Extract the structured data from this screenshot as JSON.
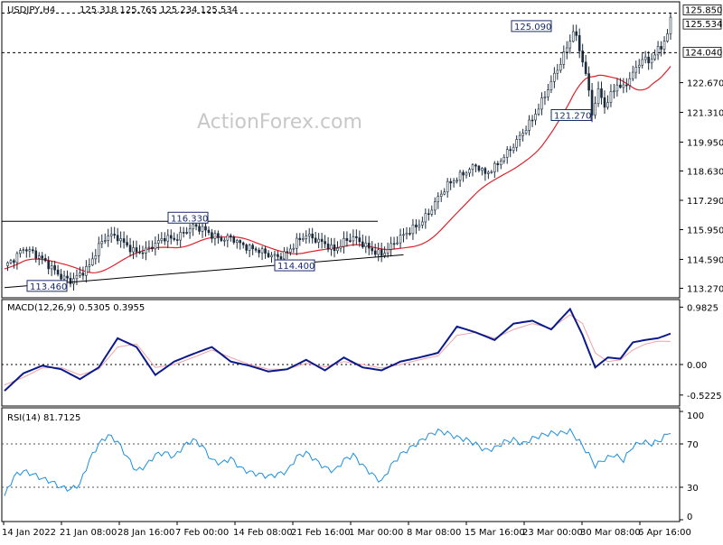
{
  "header": {
    "symbol": "USDJPY,H4",
    "ohlc": "125.318 125.765 125.234 125.534"
  },
  "watermark": "ActionForex.com",
  "colors": {
    "candle": "#1a2b3c",
    "ma": "#e0202a",
    "macd": "#0b1a8a",
    "macd_signal": "#f2a0a8",
    "rsi": "#1a8fe0",
    "axis": "#000000",
    "price_tag_bg": "#ffffff"
  },
  "chart_data": [
    {
      "type": "candlestick",
      "title": "USDJPY,H4",
      "ylim": [
        113.0,
        126.2
      ],
      "y_ticks": [
        "113.270",
        "114.590",
        "115.950",
        "117.290",
        "118.630",
        "119.950",
        "121.310",
        "122.670",
        "124.040",
        "125.534",
        "125.850"
      ],
      "x_ticks": [
        "14 Jan 2022",
        "21 Jan 08:00",
        "28 Jan 16:00",
        "7 Feb 00:00",
        "14 Feb 08:00",
        "21 Feb 16:00",
        "1 Mar 00:00",
        "8 Mar 08:00",
        "15 Mar 16:00",
        "23 Mar 00:00",
        "30 Mar 08:00",
        "6 Apr 16:00"
      ],
      "close_path": [
        [
          0,
          114.3
        ],
        [
          3,
          114.6
        ],
        [
          6,
          115.1
        ],
        [
          9,
          114.9
        ],
        [
          12,
          114.6
        ],
        [
          15,
          114.2
        ],
        [
          18,
          113.8
        ],
        [
          21,
          113.6
        ],
        [
          24,
          113.9
        ],
        [
          27,
          114.3
        ],
        [
          30,
          115.2
        ],
        [
          33,
          115.7
        ],
        [
          36,
          115.6
        ],
        [
          39,
          115.2
        ],
        [
          42,
          114.9
        ],
        [
          45,
          115.0
        ],
        [
          48,
          115.3
        ],
        [
          51,
          115.6
        ],
        [
          54,
          115.5
        ],
        [
          57,
          115.8
        ],
        [
          60,
          116.1
        ],
        [
          63,
          116.0
        ],
        [
          66,
          115.7
        ],
        [
          69,
          115.5
        ],
        [
          72,
          115.6
        ],
        [
          75,
          115.3
        ],
        [
          78,
          115.1
        ],
        [
          81,
          115.0
        ],
        [
          84,
          114.8
        ],
        [
          87,
          114.7
        ],
        [
          90,
          114.9
        ],
        [
          93,
          115.4
        ],
        [
          96,
          115.7
        ],
        [
          99,
          115.5
        ],
        [
          102,
          115.3
        ],
        [
          105,
          115.0
        ],
        [
          108,
          115.4
        ],
        [
          111,
          115.6
        ],
        [
          114,
          115.3
        ],
        [
          117,
          115.0
        ],
        [
          120,
          114.8
        ],
        [
          123,
          115.2
        ],
        [
          126,
          115.6
        ],
        [
          129,
          115.9
        ],
        [
          132,
          116.2
        ],
        [
          135,
          116.7
        ],
        [
          138,
          117.4
        ],
        [
          141,
          118.0
        ],
        [
          144,
          118.3
        ],
        [
          147,
          118.6
        ],
        [
          150,
          118.9
        ],
        [
          153,
          118.5
        ],
        [
          156,
          118.8
        ],
        [
          159,
          119.3
        ],
        [
          162,
          119.8
        ],
        [
          165,
          120.4
        ],
        [
          168,
          121.0
        ],
        [
          171,
          121.8
        ],
        [
          174,
          122.7
        ],
        [
          177,
          123.6
        ],
        [
          180,
          124.6
        ],
        [
          181,
          125.09
        ],
        [
          183,
          124.2
        ],
        [
          185,
          123.1
        ],
        [
          187,
          121.27
        ],
        [
          189,
          122.3
        ],
        [
          191,
          121.6
        ],
        [
          193,
          122.1
        ],
        [
          195,
          122.6
        ],
        [
          197,
          122.4
        ],
        [
          199,
          122.9
        ],
        [
          201,
          123.3
        ],
        [
          203,
          123.8
        ],
        [
          205,
          123.6
        ],
        [
          207,
          124.0
        ],
        [
          209,
          124.3
        ],
        [
          211,
          124.9
        ],
        [
          212,
          125.534
        ]
      ],
      "labels": [
        {
          "text": "125.090",
          "value": 125.09
        },
        {
          "text": "121.270",
          "value": 121.27
        },
        {
          "text": "116.330",
          "value": 116.33
        },
        {
          "text": "114.400",
          "value": 114.4
        },
        {
          "text": "113.460",
          "value": 113.46
        }
      ],
      "hlines": [
        {
          "value": 125.85,
          "style": "dashed"
        },
        {
          "value": 124.04,
          "style": "dashed"
        },
        {
          "value": 116.33,
          "style": "solid"
        }
      ],
      "trendline": [
        [
          113.46,
          "start"
        ],
        [
          114.8,
          "end"
        ]
      ],
      "price_tags": [
        "125.850",
        "125.534",
        "124.040"
      ]
    },
    {
      "type": "line",
      "title": "MACD(12,26,9) 0.5305 0.3955",
      "ylim": [
        -0.68,
        1.05
      ],
      "y_ticks": [
        "0.9825",
        "0.00",
        "-0.5225"
      ],
      "macd": [
        [
          0,
          -0.45
        ],
        [
          6,
          -0.15
        ],
        [
          12,
          -0.02
        ],
        [
          18,
          -0.08
        ],
        [
          24,
          -0.25
        ],
        [
          30,
          -0.05
        ],
        [
          36,
          0.45
        ],
        [
          42,
          0.3
        ],
        [
          48,
          -0.18
        ],
        [
          54,
          0.05
        ],
        [
          60,
          0.18
        ],
        [
          66,
          0.3
        ],
        [
          72,
          0.05
        ],
        [
          78,
          -0.02
        ],
        [
          84,
          -0.12
        ],
        [
          90,
          -0.08
        ],
        [
          96,
          0.08
        ],
        [
          102,
          -0.1
        ],
        [
          108,
          0.12
        ],
        [
          114,
          -0.05
        ],
        [
          120,
          -0.1
        ],
        [
          126,
          0.05
        ],
        [
          132,
          0.12
        ],
        [
          138,
          0.2
        ],
        [
          144,
          0.65
        ],
        [
          150,
          0.55
        ],
        [
          156,
          0.42
        ],
        [
          162,
          0.7
        ],
        [
          168,
          0.75
        ],
        [
          174,
          0.6
        ],
        [
          180,
          0.95
        ],
        [
          184,
          0.5
        ],
        [
          188,
          -0.05
        ],
        [
          192,
          0.12
        ],
        [
          196,
          0.1
        ],
        [
          200,
          0.38
        ],
        [
          204,
          0.42
        ],
        [
          208,
          0.45
        ],
        [
          212,
          0.53
        ]
      ],
      "signal": [
        [
          0,
          -0.35
        ],
        [
          6,
          -0.22
        ],
        [
          12,
          -0.06
        ],
        [
          18,
          -0.05
        ],
        [
          24,
          -0.18
        ],
        [
          30,
          -0.08
        ],
        [
          36,
          0.3
        ],
        [
          42,
          0.35
        ],
        [
          48,
          -0.05
        ],
        [
          54,
          0.0
        ],
        [
          60,
          0.12
        ],
        [
          66,
          0.25
        ],
        [
          72,
          0.12
        ],
        [
          78,
          0.0
        ],
        [
          84,
          -0.08
        ],
        [
          90,
          -0.08
        ],
        [
          96,
          0.02
        ],
        [
          102,
          -0.04
        ],
        [
          108,
          0.05
        ],
        [
          114,
          0.0
        ],
        [
          120,
          -0.06
        ],
        [
          126,
          0.0
        ],
        [
          132,
          0.08
        ],
        [
          138,
          0.15
        ],
        [
          144,
          0.5
        ],
        [
          150,
          0.55
        ],
        [
          156,
          0.45
        ],
        [
          162,
          0.6
        ],
        [
          168,
          0.7
        ],
        [
          174,
          0.62
        ],
        [
          180,
          0.85
        ],
        [
          184,
          0.7
        ],
        [
          188,
          0.2
        ],
        [
          192,
          0.05
        ],
        [
          196,
          0.08
        ],
        [
          200,
          0.25
        ],
        [
          204,
          0.35
        ],
        [
          208,
          0.4
        ],
        [
          212,
          0.3955
        ]
      ]
    },
    {
      "type": "line",
      "title": "RSI(14) 81.7125",
      "ylim": [
        0,
        100
      ],
      "y_ticks": [
        "100",
        "70",
        "30",
        "0"
      ],
      "series": [
        [
          0,
          22
        ],
        [
          3,
          40
        ],
        [
          6,
          45
        ],
        [
          9,
          42
        ],
        [
          12,
          38
        ],
        [
          15,
          35
        ],
        [
          18,
          30
        ],
        [
          21,
          28
        ],
        [
          24,
          33
        ],
        [
          27,
          55
        ],
        [
          30,
          70
        ],
        [
          33,
          78
        ],
        [
          36,
          72
        ],
        [
          39,
          58
        ],
        [
          42,
          45
        ],
        [
          45,
          50
        ],
        [
          48,
          60
        ],
        [
          51,
          62
        ],
        [
          54,
          58
        ],
        [
          57,
          68
        ],
        [
          60,
          74
        ],
        [
          63,
          68
        ],
        [
          66,
          55
        ],
        [
          69,
          52
        ],
        [
          72,
          57
        ],
        [
          75,
          48
        ],
        [
          78,
          44
        ],
        [
          81,
          42
        ],
        [
          84,
          40
        ],
        [
          87,
          42
        ],
        [
          90,
          45
        ],
        [
          93,
          58
        ],
        [
          96,
          62
        ],
        [
          99,
          55
        ],
        [
          102,
          48
        ],
        [
          105,
          45
        ],
        [
          108,
          55
        ],
        [
          111,
          60
        ],
        [
          114,
          50
        ],
        [
          117,
          42
        ],
        [
          120,
          35
        ],
        [
          123,
          50
        ],
        [
          126,
          60
        ],
        [
          129,
          66
        ],
        [
          132,
          72
        ],
        [
          135,
          78
        ],
        [
          138,
          82
        ],
        [
          141,
          80
        ],
        [
          144,
          76
        ],
        [
          147,
          74
        ],
        [
          150,
          70
        ],
        [
          153,
          64
        ],
        [
          156,
          66
        ],
        [
          159,
          72
        ],
        [
          162,
          74
        ],
        [
          165,
          70
        ],
        [
          168,
          75
        ],
        [
          171,
          78
        ],
        [
          174,
          80
        ],
        [
          177,
          80
        ],
        [
          180,
          82
        ],
        [
          183,
          72
        ],
        [
          186,
          60
        ],
        [
          188,
          50
        ],
        [
          191,
          56
        ],
        [
          194,
          60
        ],
        [
          197,
          55
        ],
        [
          200,
          68
        ],
        [
          203,
          72
        ],
        [
          206,
          70
        ],
        [
          209,
          74
        ],
        [
          212,
          81.7125
        ]
      ]
    }
  ]
}
